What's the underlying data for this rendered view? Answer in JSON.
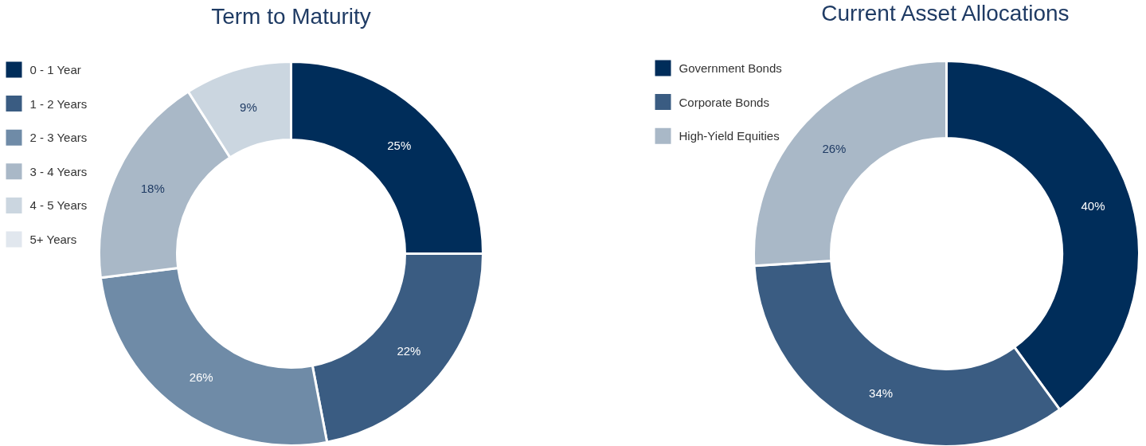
{
  "chart_data": [
    {
      "type": "donut",
      "title": "Term to Maturity",
      "categories": [
        "0 - 1 Year",
        "1 - 2 Years",
        "2 - 3 Years",
        "3 - 4 Years",
        "4 - 5 Years",
        "5+ Years"
      ],
      "values": [
        25,
        22,
        26,
        18,
        9,
        0
      ],
      "colors": [
        "#002d5a",
        "#3a5c82",
        "#6f8ba7",
        "#a9b8c7",
        "#cbd6e0",
        "#e1e7ee"
      ],
      "value_labels": [
        "25%",
        "22%",
        "26%",
        "18%",
        "9%",
        null
      ],
      "legend": "top left"
    },
    {
      "type": "donut",
      "title": "Current Asset Allocations",
      "categories": [
        "Government Bonds",
        "Corporate Bonds",
        "High-Yield Equities"
      ],
      "values": [
        40,
        34,
        26
      ],
      "colors": [
        "#002d5a",
        "#3a5c82",
        "#a9b8c7"
      ],
      "value_labels": [
        "40%",
        "34%",
        "26%"
      ],
      "legend": "top left"
    }
  ]
}
